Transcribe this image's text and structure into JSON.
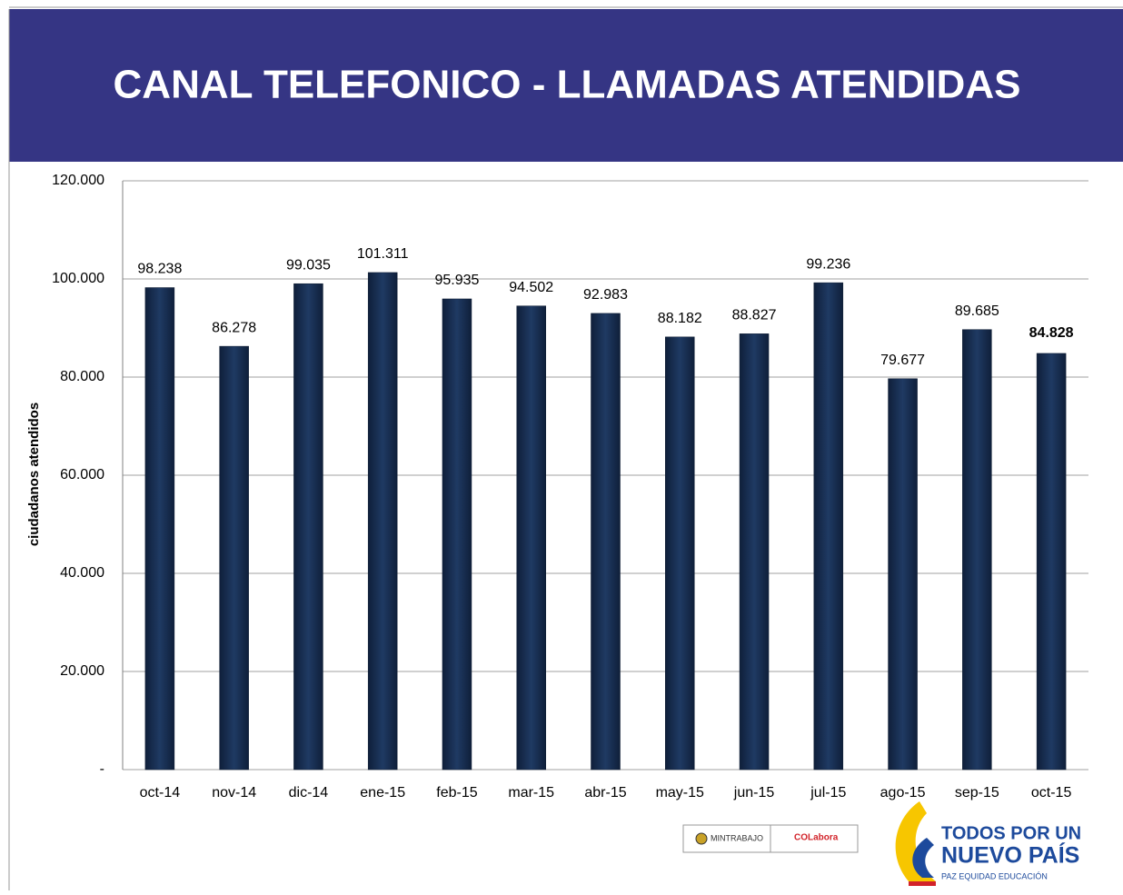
{
  "chart_data": {
    "type": "bar",
    "title": "CANAL TELEFONICO - LLAMADAS ATENDIDAS",
    "y_label": "ciudadanos atendidos",
    "categories": [
      "oct-14",
      "nov-14",
      "dic-14",
      "ene-15",
      "feb-15",
      "mar-15",
      "abr-15",
      "may-15",
      "jun-15",
      "jul-15",
      "ago-15",
      "sep-15",
      "oct-15"
    ],
    "values": [
      98238,
      86278,
      99035,
      101311,
      95935,
      94502,
      92983,
      88182,
      88827,
      99236,
      79677,
      89685,
      84828
    ],
    "value_labels": [
      "98.238",
      "86.278",
      "99.035",
      "101.311",
      "95.935",
      "94.502",
      "92.983",
      "88.182",
      "88.827",
      "99.236",
      "79.677",
      "89.685",
      "84.828"
    ],
    "color": "#1f3a63",
    "ylim": [
      0,
      120000
    ],
    "yticks": [
      {
        "value": 0,
        "label": "-"
      },
      {
        "value": 20000,
        "label": "20.000"
      },
      {
        "value": 40000,
        "label": "40.000"
      },
      {
        "value": 60000,
        "label": "60.000"
      },
      {
        "value": 80000,
        "label": "80.000"
      },
      {
        "value": 100000,
        "label": "100.000"
      },
      {
        "value": 120000,
        "label": "120.000"
      }
    ],
    "grid": true
  },
  "logos": {
    "mintrabajo": "MINTRABAJO",
    "colabora": "COLabora",
    "line1": "TODOS POR UN",
    "line2": "NUEVO PAÍS",
    "line3": "PAZ  EQUIDAD  EDUCACIÓN"
  }
}
